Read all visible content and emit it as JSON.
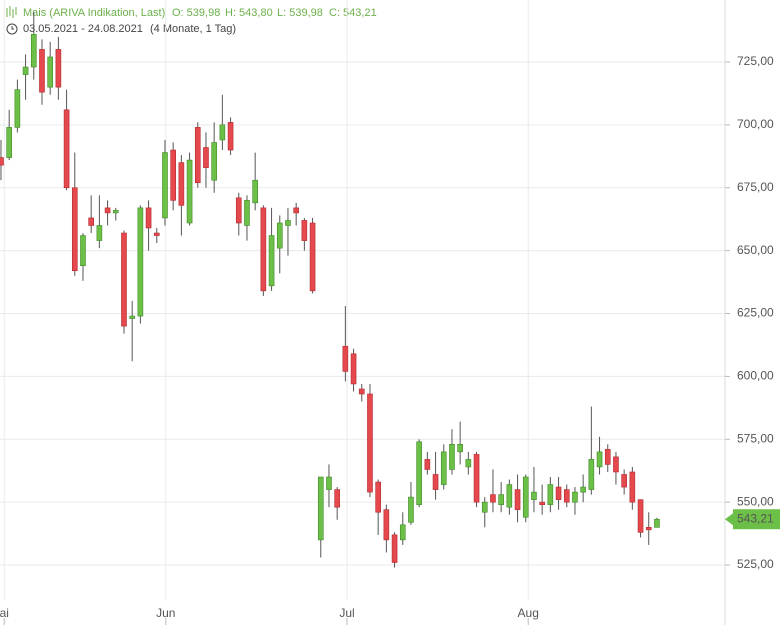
{
  "chart_data": {
    "type": "candlestick",
    "title": "Mais (ARIVA Indikation, Last)",
    "ohlc_labels": [
      "O: 539,98",
      "H: 543,80",
      "L: 539,98",
      "C: 543,21"
    ],
    "subtitle": "03.05.2021 - 24.08.2021",
    "span": "(4 Monate, 1 Tag)",
    "last_label": "543,21",
    "up_color": "#6cbf47",
    "down_color": "#e5484d",
    "grid": true,
    "x": [
      0,
      1,
      2,
      3,
      4,
      5,
      6,
      7,
      8,
      9,
      10,
      11,
      12,
      13,
      14,
      15,
      16,
      17,
      18,
      19,
      20,
      21,
      22,
      23,
      24,
      25,
      26,
      27,
      28,
      29,
      30,
      31,
      32,
      33,
      34,
      35,
      36,
      37,
      38,
      39,
      40,
      41,
      42,
      43,
      44,
      45,
      46,
      47,
      48,
      49,
      50,
      51,
      52,
      53,
      54,
      55,
      56,
      57,
      58,
      59,
      60,
      61,
      62,
      63,
      64,
      65,
      66,
      67,
      68,
      69,
      70,
      71,
      72,
      73,
      74,
      75,
      76,
      77,
      78,
      79,
      80
    ],
    "open": [
      687,
      687,
      699,
      720,
      723,
      730,
      715,
      730,
      706,
      675,
      644,
      663,
      654,
      667,
      665,
      657,
      623,
      624,
      667,
      657,
      663,
      690,
      685,
      661,
      699,
      691,
      678,
      694,
      701,
      671,
      660,
      669,
      667,
      636,
      651,
      660,
      667,
      662,
      661,
      535,
      555,
      555,
      612,
      609,
      595,
      593,
      558,
      547,
      537,
      535,
      542,
      549,
      567,
      561,
      557,
      563,
      570,
      564,
      569,
      546,
      553,
      549,
      548,
      555,
      544,
      551,
      550,
      549,
      556,
      555,
      550,
      554,
      555,
      564,
      571,
      568,
      561,
      562,
      551,
      540,
      539.98
    ],
    "high": [
      694,
      706,
      718,
      728,
      745,
      734,
      733,
      735,
      714,
      689,
      657,
      672,
      672,
      670,
      667,
      658,
      630,
      668,
      670,
      659,
      694,
      693,
      688,
      689,
      701,
      697,
      701,
      712,
      703,
      673,
      672,
      689,
      668,
      667,
      664,
      667,
      669,
      663,
      663,
      560,
      565,
      556,
      628,
      611,
      597,
      597,
      559,
      549,
      538,
      546,
      558,
      575,
      570,
      570,
      573,
      579,
      582,
      570,
      570,
      552,
      563,
      558,
      559,
      561,
      561,
      564,
      557,
      560,
      560,
      557,
      556,
      561,
      588,
      576,
      573,
      570,
      563,
      564,
      551,
      546,
      543.8
    ],
    "low": [
      678,
      686,
      697,
      710,
      718,
      708,
      712,
      710,
      674,
      640,
      638,
      657,
      651,
      660,
      662,
      617,
      606,
      621,
      650,
      653,
      660,
      666,
      656,
      660,
      675,
      675,
      673,
      690,
      688,
      656,
      654,
      666,
      632,
      634,
      641,
      648,
      660,
      650,
      633,
      528,
      548,
      543,
      598,
      594,
      590,
      552,
      537,
      530,
      524,
      533,
      541,
      548,
      561,
      551,
      555,
      561,
      565,
      561,
      548,
      540,
      546,
      546,
      545,
      542,
      542,
      546,
      545,
      546,
      547,
      548,
      545,
      550,
      553,
      561,
      562,
      557,
      553,
      547,
      536,
      533,
      539.98
    ],
    "close": [
      684,
      699,
      714,
      723,
      736,
      713,
      727,
      715,
      675,
      642,
      656,
      660,
      660,
      665,
      666,
      620,
      624,
      667,
      659,
      656,
      689,
      670,
      668,
      686,
      677,
      683,
      693,
      700,
      690,
      661,
      670,
      678,
      634,
      656,
      661,
      662,
      665,
      654,
      634,
      560,
      560,
      548,
      602,
      597,
      593,
      554,
      546,
      535,
      526,
      541,
      552,
      574,
      563,
      555,
      570,
      573,
      573,
      567,
      550,
      550,
      550,
      553,
      557,
      547,
      560,
      554,
      549,
      557,
      551,
      550,
      554,
      556,
      567,
      570,
      565,
      562,
      556,
      550,
      538,
      539,
      543.21
    ],
    "xlim": [
      -0.12,
      88.3
    ],
    "xticks": [
      {
        "value": 0.4,
        "label": "ai"
      },
      {
        "value": 20.1,
        "label": "Jun"
      },
      {
        "value": 42.2,
        "label": "Jul"
      },
      {
        "value": 64.3,
        "label": "Aug"
      }
    ],
    "ylim": [
      511.1,
      749.65
    ],
    "yticks": [
      {
        "value": 525,
        "label": "525,00"
      },
      {
        "value": 550,
        "label": "550,00"
      },
      {
        "value": 575,
        "label": "575,00"
      },
      {
        "value": 600,
        "label": "600,00"
      },
      {
        "value": 625,
        "label": "625,00"
      },
      {
        "value": 650,
        "label": "650,00"
      },
      {
        "value": 675,
        "label": "675,00"
      },
      {
        "value": 700,
        "label": "700,00"
      },
      {
        "value": 725,
        "label": "725,00"
      }
    ]
  }
}
